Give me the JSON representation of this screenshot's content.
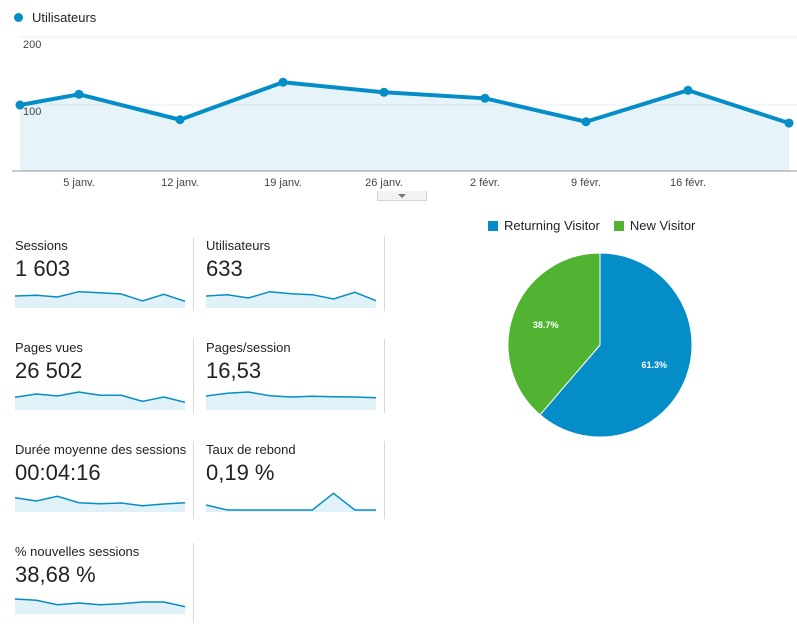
{
  "legend": {
    "label": "Utilisateurs",
    "color": "#058dc7"
  },
  "chart_data": [
    {
      "type": "area",
      "series": [
        {
          "name": "Utilisateurs",
          "color": "#058dc7",
          "values": [
            97,
            113,
            75,
            131,
            116,
            107,
            72,
            119,
            70
          ]
        }
      ],
      "x": [
        "",
        "5 janv.",
        "12 janv.",
        "19 janv.",
        "26 janv.",
        "2 févr.",
        "9 févr.",
        "16 févr.",
        ""
      ],
      "x_tick_labels": [
        "5 janv.",
        "12 janv.",
        "19 janv.",
        "26 janv.",
        "2 févr.",
        "9 févr.",
        "16 févr."
      ],
      "y_tick_labels": [
        "200",
        "100"
      ],
      "ylim": [
        0,
        200
      ],
      "grid": true
    },
    {
      "type": "pie",
      "categories": [
        "Returning Visitor",
        "New Visitor"
      ],
      "values": [
        61.3,
        38.7
      ],
      "labels": [
        "61.3%",
        "38.7%"
      ],
      "colors": [
        "#058dc7",
        "#50b432"
      ],
      "legend_placement": "top"
    }
  ],
  "metrics": [
    {
      "label": "Sessions",
      "value": "1 603",
      "spark": [
        3,
        3.2,
        2.7,
        4.3,
        4.0,
        3.6,
        1.5,
        3.5,
        1.4
      ]
    },
    {
      "label": "Utilisateurs",
      "value": "633",
      "spark": [
        3,
        3.4,
        2.4,
        4.3,
        3.7,
        3.4,
        2.1,
        4.1,
        1.6
      ]
    },
    {
      "label": "Pages vues",
      "value": "26 502",
      "spark": [
        3.2,
        4.2,
        3.6,
        4.8,
        3.8,
        3.8,
        2.0,
        3.3,
        1.7
      ]
    },
    {
      "label": "Pages/session",
      "value": "16,53",
      "spark": [
        3.6,
        4.4,
        4.8,
        3.7,
        3.3,
        3.5,
        3.4,
        3.3,
        3.1
      ]
    },
    {
      "label": "Durée moyenne des sessions",
      "value": "00:04:16",
      "spark": [
        3.7,
        2.7,
        4.1,
        2.2,
        1.9,
        2.1,
        1.3,
        1.8,
        2.2
      ]
    },
    {
      "label": "Taux de rebond",
      "value": "0,19 %",
      "spark": [
        1.5,
        0,
        0,
        0,
        0,
        0,
        5,
        0,
        0
      ]
    },
    {
      "label": "% nouvelles sessions",
      "value": "38,68 %",
      "spark": [
        3.9,
        3.5,
        2.2,
        2.7,
        2.2,
        2.5,
        3.0,
        3.0,
        1.6
      ]
    }
  ]
}
